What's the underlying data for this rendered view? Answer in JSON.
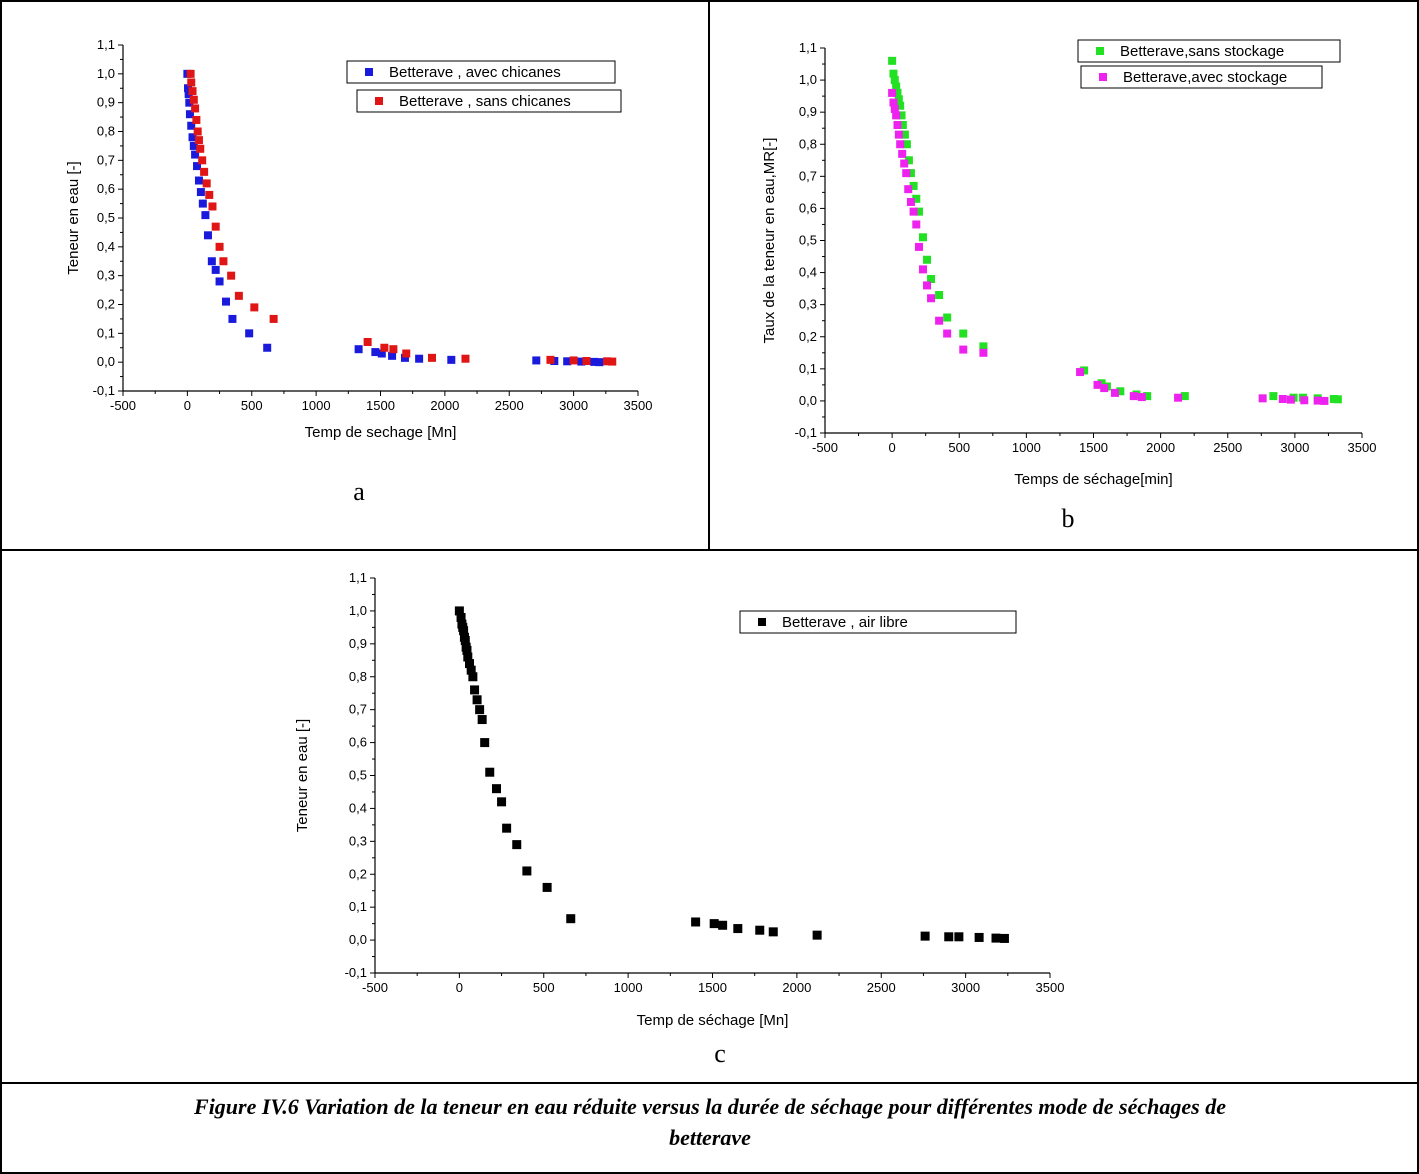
{
  "caption": {
    "line1": "Figure IV.6 Variation de la teneur en eau réduite versus la durée de séchage pour différentes mode de séchages de",
    "line2": "betterave"
  },
  "chart_data": [
    {
      "type": "scatter",
      "panel_label": "a",
      "xlabel": "Temp de sechage [Mn]",
      "ylabel": "Teneur en eau [-]",
      "xlim": [
        -500,
        3500
      ],
      "ylim": [
        -0.1,
        1.1
      ],
      "xticks": [
        "-500",
        "0",
        "500",
        "1000",
        "1500",
        "2000",
        "2500",
        "3000",
        "3500"
      ],
      "yticks": [
        "-0,1",
        "0,0",
        "0,1",
        "0,2",
        "0,3",
        "0,4",
        "0,5",
        "0,6",
        "0,7",
        "0,8",
        "0,9",
        "1,0",
        "1,1"
      ],
      "grid": false,
      "legend_position": "top-right",
      "series": [
        {
          "name": "Betterave , avec chicanes",
          "color": "#1a1adc",
          "x": [
            0,
            5,
            10,
            15,
            20,
            30,
            40,
            50,
            60,
            75,
            90,
            105,
            120,
            140,
            160,
            190,
            220,
            250,
            300,
            350,
            480,
            620,
            1330,
            1460,
            1510,
            1590,
            1690,
            1800,
            2050,
            2710,
            2850,
            2950,
            3060,
            3160,
            3200
          ],
          "y": [
            1.0,
            0.95,
            0.93,
            0.9,
            0.86,
            0.82,
            0.78,
            0.75,
            0.72,
            0.68,
            0.63,
            0.59,
            0.55,
            0.51,
            0.44,
            0.35,
            0.32,
            0.28,
            0.21,
            0.15,
            0.1,
            0.05,
            0.045,
            0.035,
            0.03,
            0.022,
            0.015,
            0.012,
            0.008,
            0.006,
            0.004,
            0.003,
            0.002,
            0.001,
            0.0
          ]
        },
        {
          "name": "Betterave , sans chicanes",
          "color": "#e01515",
          "x": [
            25,
            30,
            40,
            50,
            60,
            70,
            80,
            90,
            100,
            115,
            130,
            150,
            170,
            195,
            220,
            250,
            280,
            340,
            400,
            520,
            670,
            1400,
            1530,
            1600,
            1700,
            1900,
            2160,
            2820,
            3000,
            3100,
            3260,
            3300
          ],
          "y": [
            1.0,
            0.97,
            0.94,
            0.91,
            0.88,
            0.84,
            0.8,
            0.77,
            0.74,
            0.7,
            0.66,
            0.62,
            0.58,
            0.54,
            0.47,
            0.4,
            0.35,
            0.3,
            0.23,
            0.19,
            0.15,
            0.07,
            0.05,
            0.045,
            0.03,
            0.015,
            0.012,
            0.008,
            0.006,
            0.004,
            0.003,
            0.002
          ]
        }
      ]
    },
    {
      "type": "scatter",
      "panel_label": "b",
      "xlabel": "Temps de séchage[min]",
      "ylabel": "Taux de la teneur en eau,MR[-]",
      "xlim": [
        -500,
        3500
      ],
      "ylim": [
        -0.1,
        1.1
      ],
      "xticks": [
        "-500",
        "0",
        "500",
        "1000",
        "1500",
        "2000",
        "2500",
        "3000",
        "3500"
      ],
      "yticks": [
        "-0,1",
        "0,0",
        "0,1",
        "0,2",
        "0,3",
        "0,4",
        "0,5",
        "0,6",
        "0,7",
        "0,8",
        "0,9",
        "1,0",
        "1,1"
      ],
      "grid": false,
      "legend_position": "top-right",
      "series": [
        {
          "name": "Betterave,sans stockage",
          "color": "#22e022",
          "x": [
            0,
            10,
            20,
            30,
            40,
            50,
            60,
            70,
            80,
            95,
            110,
            125,
            140,
            160,
            180,
            200,
            230,
            260,
            290,
            350,
            410,
            530,
            680,
            1430,
            1560,
            1600,
            1700,
            1820,
            1900,
            2180,
            2840,
            2990,
            3060,
            3170,
            3290,
            3320
          ],
          "y": [
            1.06,
            1.02,
            1.0,
            0.98,
            0.96,
            0.94,
            0.92,
            0.89,
            0.86,
            0.83,
            0.8,
            0.75,
            0.71,
            0.67,
            0.63,
            0.59,
            0.51,
            0.44,
            0.38,
            0.33,
            0.26,
            0.21,
            0.17,
            0.095,
            0.055,
            0.045,
            0.03,
            0.02,
            0.015,
            0.015,
            0.015,
            0.01,
            0.01,
            0.008,
            0.006,
            0.005
          ]
        },
        {
          "name": "Betterave,avec stockage",
          "color": "#ee22ee",
          "x": [
            0,
            10,
            20,
            30,
            40,
            50,
            60,
            75,
            90,
            105,
            120,
            140,
            160,
            180,
            200,
            230,
            260,
            290,
            350,
            410,
            530,
            680,
            1400,
            1530,
            1580,
            1660,
            1800,
            1860,
            2130,
            2760,
            2910,
            2970,
            3070,
            3170,
            3220
          ],
          "y": [
            0.96,
            0.93,
            0.91,
            0.89,
            0.86,
            0.83,
            0.8,
            0.77,
            0.74,
            0.71,
            0.66,
            0.62,
            0.59,
            0.55,
            0.48,
            0.41,
            0.36,
            0.32,
            0.25,
            0.21,
            0.16,
            0.15,
            0.09,
            0.05,
            0.04,
            0.025,
            0.015,
            0.012,
            0.01,
            0.008,
            0.006,
            0.004,
            0.002,
            0.001,
            0.0
          ]
        }
      ]
    },
    {
      "type": "scatter",
      "panel_label": "c",
      "xlabel": "Temp de séchage [Mn]",
      "ylabel": "Teneur en eau [-]",
      "xlim": [
        -500,
        3500
      ],
      "ylim": [
        -0.1,
        1.1
      ],
      "xticks": [
        "-500",
        "0",
        "500",
        "1000",
        "1500",
        "2000",
        "2500",
        "3000",
        "3500"
      ],
      "yticks": [
        "-0,1",
        "0,0",
        "0,1",
        "0,2",
        "0,3",
        "0,4",
        "0,5",
        "0,6",
        "0,7",
        "0,8",
        "0,9",
        "1,0",
        "1,1"
      ],
      "grid": false,
      "legend_position": "top-right",
      "series": [
        {
          "name": "Betterave , air libre",
          "color": "#000000",
          "x": [
            0,
            10,
            15,
            20,
            25,
            30,
            35,
            40,
            45,
            50,
            60,
            70,
            80,
            90,
            105,
            120,
            135,
            150,
            180,
            220,
            250,
            280,
            340,
            400,
            520,
            660,
            1400,
            1510,
            1560,
            1650,
            1780,
            1860,
            2120,
            2760,
            2900,
            2960,
            3080,
            3180,
            3230
          ],
          "y": [
            1.0,
            0.98,
            0.96,
            0.95,
            0.94,
            0.92,
            0.91,
            0.89,
            0.88,
            0.86,
            0.84,
            0.82,
            0.8,
            0.76,
            0.73,
            0.7,
            0.67,
            0.6,
            0.51,
            0.46,
            0.42,
            0.34,
            0.29,
            0.21,
            0.16,
            0.065,
            0.055,
            0.05,
            0.045,
            0.035,
            0.03,
            0.025,
            0.015,
            0.012,
            0.01,
            0.01,
            0.008,
            0.006,
            0.005
          ]
        }
      ]
    }
  ]
}
